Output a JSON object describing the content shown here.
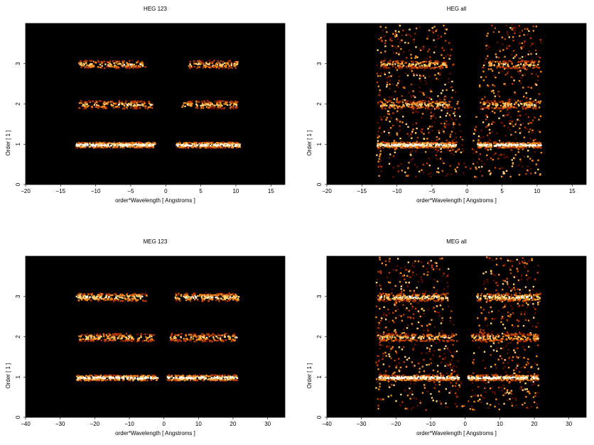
{
  "chart_data": [
    {
      "type": "heatmap",
      "title": "HEG 123",
      "xlabel": "order*Wavelength [ Angstroms ]",
      "ylabel": "Order [ 1 ]",
      "xlim": [
        -20,
        17
      ],
      "ylim": [
        0,
        4
      ],
      "xticks": [
        -20,
        -15,
        -10,
        -5,
        0,
        5,
        10,
        15
      ],
      "yticks": [
        0,
        1,
        2,
        3
      ],
      "background": "#000000",
      "colormap": [
        "#000000",
        "#5a0d00",
        "#b83a00",
        "#f08a20",
        "#ffd27a",
        "#ffffff"
      ],
      "bands": [
        {
          "order": 1,
          "x_ranges": [
            [
              -12.9,
              -1.6
            ],
            [
              1.4,
              10.5
            ]
          ],
          "level": 1.0,
          "density": 0.9
        },
        {
          "order": 2,
          "x_ranges": [
            [
              -12.5,
              -2.0
            ],
            [
              2.2,
              10.2
            ]
          ],
          "level": 0.75,
          "density": 0.35
        },
        {
          "order": 3,
          "x_ranges": [
            [
              -12.5,
              -3.0
            ],
            [
              3.0,
              10.2
            ]
          ],
          "level": 0.75,
          "density": 0.3
        }
      ],
      "wedges": []
    },
    {
      "type": "heatmap",
      "title": "HEG all",
      "xlabel": "order*Wavelength [ Angstroms ]",
      "ylabel": "Order [ 1 ]",
      "xlim": [
        -20,
        17
      ],
      "ylim": [
        0,
        4
      ],
      "xticks": [
        -20,
        -15,
        -10,
        -5,
        0,
        5,
        10,
        15
      ],
      "yticks": [
        0,
        1,
        2,
        3
      ],
      "background": "#000000",
      "colormap": [
        "#000000",
        "#5a0d00",
        "#b83a00",
        "#f08a20",
        "#ffd27a",
        "#ffffff"
      ],
      "bands": [
        {
          "order": 1,
          "x_ranges": [
            [
              -12.9,
              -1.6
            ],
            [
              1.4,
              10.5
            ]
          ],
          "level": 1.0,
          "density": 0.9
        },
        {
          "order": 2,
          "x_ranges": [
            [
              -12.5,
              -2.5
            ],
            [
              2.2,
              10.2
            ]
          ],
          "level": 0.75,
          "density": 0.35
        },
        {
          "order": 3,
          "x_ranges": [
            [
              -12.5,
              -3.0
            ],
            [
              3.0,
              10.2
            ]
          ],
          "level": 0.75,
          "density": 0.3
        }
      ],
      "wedges": [
        {
          "x_range": [
            -13,
            10.5
          ],
          "order_range": [
            0.2,
            4.0
          ],
          "center_gap_slope": 1.25,
          "density": 0.45
        }
      ]
    },
    {
      "type": "heatmap",
      "title": "MEG 123",
      "xlabel": "order*Wavelength [ Angstroms ]",
      "ylabel": "Order [ 1 ]",
      "xlim": [
        -40,
        35
      ],
      "ylim": [
        0,
        4
      ],
      "xticks": [
        -40,
        -30,
        -20,
        -10,
        0,
        10,
        20,
        30
      ],
      "yticks": [
        0,
        1,
        2,
        3
      ],
      "background": "#000000",
      "colormap": [
        "#000000",
        "#5a0d00",
        "#b83a00",
        "#f08a20",
        "#ffd27a",
        "#ffffff"
      ],
      "bands": [
        {
          "order": 1,
          "x_ranges": [
            [
              -25.5,
              -2.0
            ],
            [
              0.5,
              21.0
            ]
          ],
          "level": 1.0,
          "density": 0.7
        },
        {
          "order": 2,
          "x_ranges": [
            [
              -25.0,
              -3.0
            ],
            [
              1.5,
              21.0
            ]
          ],
          "level": 0.75,
          "density": 0.35
        },
        {
          "order": 3,
          "x_ranges": [
            [
              -25.5,
              -5.0
            ],
            [
              3.0,
              21.5
            ]
          ],
          "level": 0.85,
          "density": 0.45
        }
      ],
      "wedges": []
    },
    {
      "type": "heatmap",
      "title": "MEG all",
      "xlabel": "order*Wavelength [ Angstroms ]",
      "ylabel": "Order [ 1 ]",
      "xlim": [
        -40,
        35
      ],
      "ylim": [
        0,
        4
      ],
      "xticks": [
        -40,
        -30,
        -20,
        -10,
        0,
        10,
        20,
        30
      ],
      "yticks": [
        0,
        1,
        2,
        3
      ],
      "background": "#000000",
      "colormap": [
        "#000000",
        "#5a0d00",
        "#b83a00",
        "#f08a20",
        "#ffd27a",
        "#ffffff"
      ],
      "bands": [
        {
          "order": 1,
          "x_ranges": [
            [
              -25.5,
              -2.0
            ],
            [
              0.5,
              21.0
            ]
          ],
          "level": 1.0,
          "density": 0.7
        },
        {
          "order": 2,
          "x_ranges": [
            [
              -25.0,
              -3.0
            ],
            [
              1.5,
              21.0
            ]
          ],
          "level": 0.75,
          "density": 0.35
        },
        {
          "order": 3,
          "x_ranges": [
            [
              -25.5,
              -5.0
            ],
            [
              3.0,
              21.5
            ]
          ],
          "level": 0.85,
          "density": 0.45
        }
      ],
      "wedges": [
        {
          "x_range": [
            -26,
            21
          ],
          "order_range": [
            0.2,
            4.0
          ],
          "center_gap_slope": 1.25,
          "density": 0.45
        }
      ]
    }
  ]
}
